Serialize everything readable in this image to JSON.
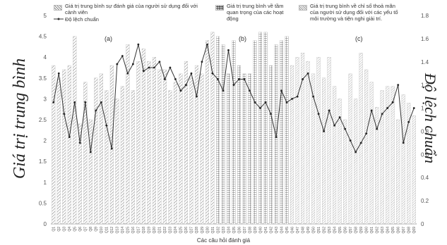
{
  "chart_data": {
    "type": "bar",
    "xlabel": "Các câu hỏi đánh giá",
    "ylabel_left": "Giá trị trung bình",
    "ylabel_right": "Độ lệch chuẩn",
    "ylim_left": [
      0,
      5
    ],
    "ylim_right": [
      0,
      1.8
    ],
    "yticks_left": [
      "0",
      "0.5",
      "1",
      "1.5",
      "2",
      "2.5",
      "3",
      "3.5",
      "4",
      "4.5",
      "5"
    ],
    "yticks_right": [
      "0",
      "0.2",
      "0.4",
      "0.6",
      "0.8",
      "1",
      "1.2",
      "1.4",
      "1.6",
      "1.8"
    ],
    "categories": [
      "Q1",
      "Q2",
      "Q3",
      "Q4",
      "Q5",
      "Q6",
      "Q7",
      "Q8",
      "Q9",
      "Q10",
      "Q11",
      "Q12",
      "Q13",
      "Q14",
      "Q15",
      "Q16",
      "Q17",
      "Q18",
      "Q19",
      "Q20",
      "Q21",
      "Q22",
      "Q23",
      "Q24",
      "Q25",
      "Q26",
      "Q27",
      "Q28",
      "Q29",
      "Q30",
      "Q31",
      "Q32",
      "Q33",
      "Q34",
      "Q35",
      "Q36",
      "Q37",
      "Q38",
      "Q39",
      "Q40",
      "Q41",
      "Q42",
      "Q43",
      "Q44",
      "Q45",
      "Q46",
      "Q47",
      "Q48",
      "Q49",
      "Q50",
      "Q51",
      "Q52",
      "Q53",
      "Q54",
      "Q55",
      "Q56",
      "Q57",
      "Q58",
      "Q59",
      "Q60",
      "Q61",
      "Q62",
      "Q63",
      "Q64",
      "Q65",
      "Q66",
      "Q67",
      "Q68",
      "Q69"
    ],
    "groups": [
      {
        "label": "(a)",
        "start": 1,
        "end": 31,
        "pattern": "diagonal",
        "legend": "Giá trị trung bình sự đánh giá của người sử dụng đối với cảnh viên"
      },
      {
        "label": "(b)",
        "start": 32,
        "end": 45,
        "pattern": "grid",
        "legend": "Giá trị trung bình về tầm quan trọng của các hoạt động"
      },
      {
        "label": "(c)",
        "start": 46,
        "end": 69,
        "pattern": "diagonal-fine",
        "legend": "Giá trị trung bình về chỉ số thoả mãn của người sử dụng đối với các yếu tố môi trường và tiện nghi giải trí."
      }
    ],
    "series": [
      {
        "name": "Giá trị trung bình",
        "axis": "left",
        "values": [
          3.8,
          3.5,
          3.7,
          3.8,
          4.5,
          2.4,
          3.4,
          2.5,
          3.5,
          3.6,
          3.2,
          3.8,
          3.0,
          3.3,
          4.3,
          3.2,
          3.9,
          4.2,
          3.9,
          4.0,
          3.7,
          3.7,
          3.2,
          3.4,
          3.6,
          3.9,
          3.5,
          3.8,
          3.6,
          4.4,
          4.6,
          4.5,
          4.3,
          3.6,
          4.4,
          3.8,
          3.6,
          3.6,
          4.4,
          4.6,
          4.6,
          3.8,
          4.3,
          4.4,
          4.5,
          3.8,
          4.0,
          4.1,
          3.9,
          3.6,
          4.0,
          3.5,
          4.0,
          3.3,
          3.0,
          2.5,
          3.6,
          3.0,
          4.1,
          3.7,
          3.4,
          2.8,
          3.2,
          3.3,
          3.3,
          2.5,
          3.1,
          2.9,
          2.6
        ]
      },
      {
        "name": "Độ lệch chuẩn",
        "axis": "right",
        "values": [
          1.05,
          1.3,
          0.95,
          0.75,
          1.05,
          0.7,
          1.05,
          0.62,
          0.98,
          1.05,
          0.85,
          0.65,
          1.38,
          1.45,
          1.3,
          1.38,
          1.55,
          1.32,
          1.35,
          1.35,
          1.4,
          1.25,
          1.35,
          1.25,
          1.15,
          1.2,
          1.3,
          1.1,
          1.4,
          1.55,
          1.3,
          1.25,
          1.15,
          1.5,
          1.2,
          1.25,
          1.25,
          1.15,
          1.05,
          1.0,
          1.05,
          0.95,
          0.75,
          1.15,
          1.05,
          1.08,
          1.1,
          1.25,
          1.3,
          1.1,
          0.95,
          0.8,
          0.98,
          0.85,
          0.92,
          0.82,
          0.72,
          0.62,
          0.7,
          0.78,
          0.98,
          0.82,
          0.95,
          1.0,
          1.05,
          1.2,
          0.7,
          0.88,
          1.0
        ]
      }
    ],
    "legend": {
      "group_a": "Giá trị trung bình sự đánh giá của người sử dụng đối với cảnh viên",
      "group_b": "Giá trị trung bình về tầm quan trọng của các hoạt động",
      "group_c": "Giá trị trung bình về chỉ số thoả mãn của người sử dụng đối với các yếu tố môi trường và tiện nghi giải trí.",
      "line": "Độ lệch chuẩn"
    },
    "panel_labels": [
      "(a)",
      "(b)",
      "(c)"
    ]
  }
}
